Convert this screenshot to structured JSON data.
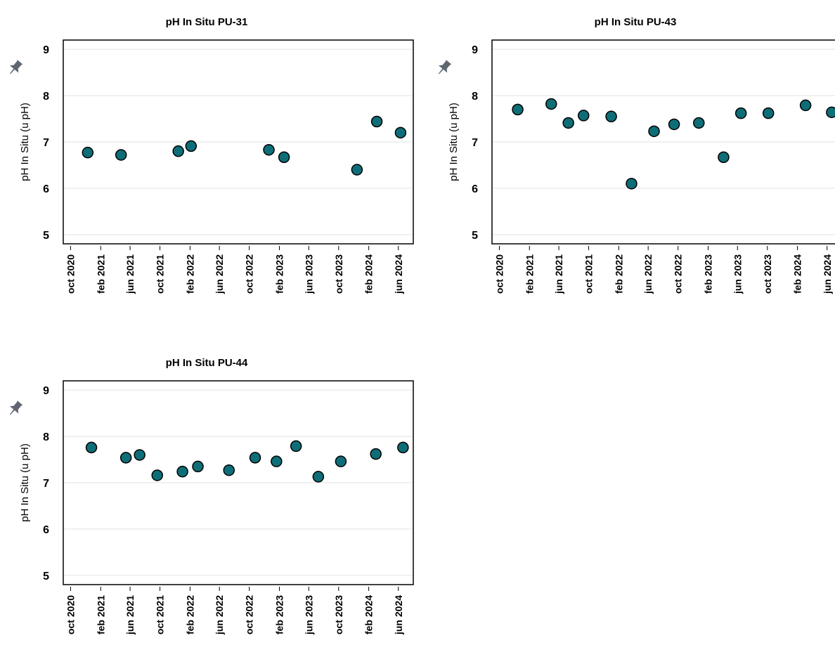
{
  "colors": {
    "marker": "#0e6e78",
    "marker_edge": "#000000",
    "grid": "#e2e2e2",
    "pin": "#5e6670"
  },
  "icons": {
    "pin": "pin-icon"
  },
  "chart_data": [
    {
      "type": "scatter",
      "title": "pH In Situ PU-31",
      "ylabel": "pH In Situ (u pH)",
      "xlabel": "",
      "ylim": [
        4.8,
        9.2
      ],
      "yticks": [
        "9",
        "8",
        "7",
        "6",
        "5"
      ],
      "xlim": [
        "2020-09-01",
        "2024-08-01"
      ],
      "xticks": [
        "oct 2020",
        "feb 2021",
        "jun 2021",
        "oct 2021",
        "feb 2022",
        "jun 2022",
        "oct 2022",
        "feb 2023",
        "jun 2023",
        "oct 2023",
        "feb 2024",
        "jun 2024"
      ],
      "grid": true,
      "points": [
        {
          "x": "2020-12-10",
          "y": 6.77
        },
        {
          "x": "2021-04-25",
          "y": 6.72
        },
        {
          "x": "2021-12-15",
          "y": 6.8
        },
        {
          "x": "2022-02-05",
          "y": 6.91
        },
        {
          "x": "2022-12-20",
          "y": 6.83
        },
        {
          "x": "2023-02-20",
          "y": 6.67
        },
        {
          "x": "2023-12-15",
          "y": 6.4
        },
        {
          "x": "2024-03-05",
          "y": 7.44
        },
        {
          "x": "2024-06-10",
          "y": 7.2
        }
      ]
    },
    {
      "type": "scatter",
      "title": "pH In Situ PU-43",
      "ylabel": "pH In Situ (u pH)",
      "xlabel": "",
      "ylim": [
        4.8,
        9.2
      ],
      "yticks": [
        "9",
        "8",
        "7",
        "6",
        "5"
      ],
      "xlim": [
        "2020-09-01",
        "2024-08-01"
      ],
      "xticks": [
        "oct 2020",
        "feb 2021",
        "jun 2021",
        "oct 2021",
        "feb 2022",
        "jun 2022",
        "oct 2022",
        "feb 2023",
        "jun 2023",
        "oct 2023",
        "feb 2024",
        "jun 2024"
      ],
      "grid": true,
      "points": [
        {
          "x": "2020-12-15",
          "y": 7.7
        },
        {
          "x": "2021-05-01",
          "y": 7.82
        },
        {
          "x": "2021-07-10",
          "y": 7.41
        },
        {
          "x": "2021-09-10",
          "y": 7.57
        },
        {
          "x": "2022-01-01",
          "y": 7.55
        },
        {
          "x": "2022-03-25",
          "y": 6.1
        },
        {
          "x": "2022-06-25",
          "y": 7.23
        },
        {
          "x": "2022-09-15",
          "y": 7.38
        },
        {
          "x": "2022-12-25",
          "y": 7.41
        },
        {
          "x": "2023-04-05",
          "y": 6.67
        },
        {
          "x": "2023-06-15",
          "y": 7.62
        },
        {
          "x": "2023-10-05",
          "y": 7.62
        },
        {
          "x": "2024-03-05",
          "y": 7.79
        },
        {
          "x": "2024-06-20",
          "y": 7.64
        }
      ]
    },
    {
      "type": "scatter",
      "title": "pH In Situ PU-44",
      "ylabel": "pH In Situ (u pH)",
      "xlabel": "",
      "ylim": [
        4.8,
        9.2
      ],
      "yticks": [
        "9",
        "8",
        "7",
        "6",
        "5"
      ],
      "xlim": [
        "2020-09-01",
        "2024-08-01"
      ],
      "xticks": [
        "oct 2020",
        "feb 2021",
        "jun 2021",
        "oct 2021",
        "feb 2022",
        "jun 2022",
        "oct 2022",
        "feb 2023",
        "jun 2023",
        "oct 2023",
        "feb 2024",
        "jun 2024"
      ],
      "grid": true,
      "points": [
        {
          "x": "2020-12-25",
          "y": 7.76
        },
        {
          "x": "2021-05-15",
          "y": 7.54
        },
        {
          "x": "2021-07-10",
          "y": 7.6
        },
        {
          "x": "2021-09-20",
          "y": 7.16
        },
        {
          "x": "2022-01-01",
          "y": 7.24
        },
        {
          "x": "2022-03-05",
          "y": 7.35
        },
        {
          "x": "2022-07-10",
          "y": 7.27
        },
        {
          "x": "2022-10-25",
          "y": 7.54
        },
        {
          "x": "2023-01-20",
          "y": 7.46
        },
        {
          "x": "2023-04-10",
          "y": 7.79
        },
        {
          "x": "2023-07-10",
          "y": 7.13
        },
        {
          "x": "2023-10-10",
          "y": 7.46
        },
        {
          "x": "2024-03-01",
          "y": 7.62
        },
        {
          "x": "2024-06-20",
          "y": 7.76
        }
      ]
    }
  ]
}
